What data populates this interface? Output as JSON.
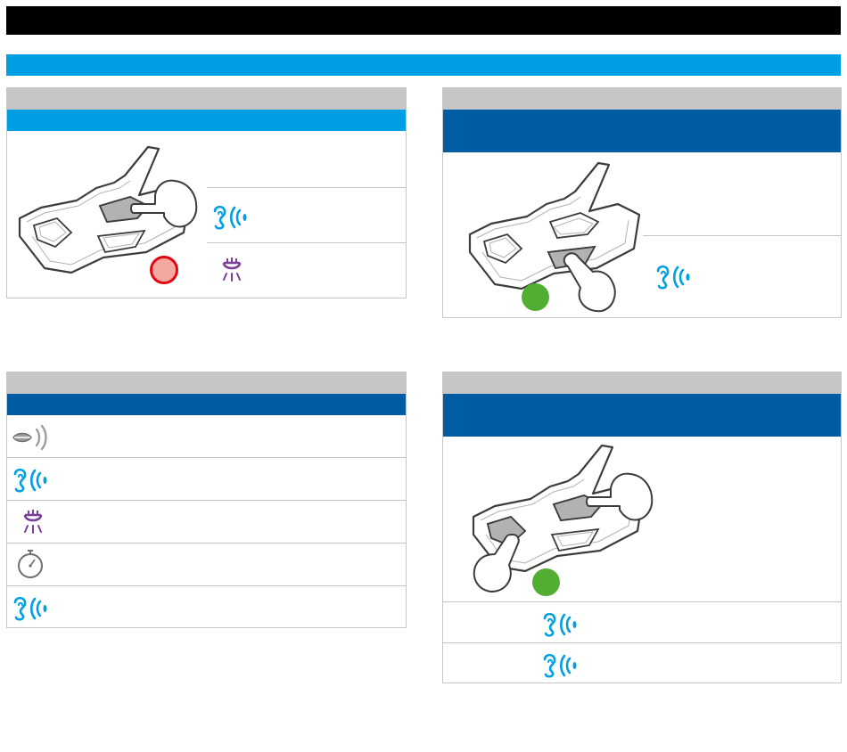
{
  "page": {
    "header_bar_color": "#000000",
    "section_bar_color": "#009fe3"
  },
  "colors": {
    "panel_header": "#c6c6c6",
    "band_light": "#009fe3",
    "band_dark": "#005da1",
    "led_red": "#e30613",
    "led_red_fill": "#f4a9a0",
    "led_green": "#52ae32",
    "ear_icon": "#009fe3",
    "light_icon": "#7b3f98",
    "border": "#c6c6c6"
  },
  "panels": {
    "top_left": {
      "device_illustration": "device-with-finger-on-top-button",
      "led": "red",
      "rows": [
        {
          "icon": "ear-sound-icon"
        },
        {
          "icon": "light-icon"
        }
      ]
    },
    "top_right": {
      "device_illustration": "device-with-finger-on-bottom-button",
      "led": "green",
      "rows": [
        {
          "icon": "ear-sound-icon"
        }
      ]
    },
    "bottom_left": {
      "rows": [
        {
          "icon": "speech-icon"
        },
        {
          "icon": "ear-sound-icon"
        },
        {
          "icon": "light-icon"
        },
        {
          "icon": "timer-icon"
        },
        {
          "icon": "ear-sound-icon"
        }
      ]
    },
    "bottom_right": {
      "device_illustration": "device-with-two-fingers",
      "led": "green",
      "rows": [
        {
          "icon": "ear-sound-icon"
        },
        {
          "icon": "ear-sound-icon"
        }
      ]
    }
  }
}
